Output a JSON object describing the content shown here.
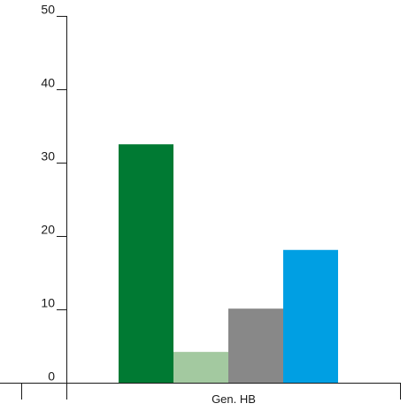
{
  "chart_data": {
    "type": "bar",
    "title": "",
    "xlabel": "",
    "ylabel": "",
    "categories": [
      "Gen. HB"
    ],
    "series": [
      {
        "values": [
          32.5
        ],
        "color": "#007a33"
      },
      {
        "values": [
          4.2
        ],
        "color": "#a3c9a0"
      },
      {
        "values": [
          10.1
        ],
        "color": "#888888"
      },
      {
        "values": [
          18.1
        ],
        "color": "#009fe3"
      }
    ],
    "ylim": [
      0,
      50
    ],
    "yticks": [
      0,
      10,
      20,
      30,
      40,
      50
    ],
    "grid": false,
    "legend": "none"
  }
}
